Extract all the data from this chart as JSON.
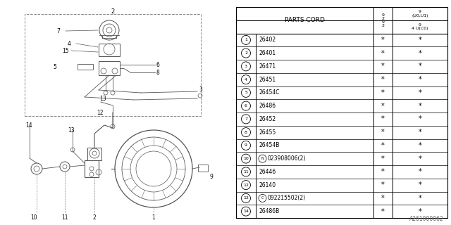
{
  "background_color": "#ffffff",
  "parts": [
    {
      "num": "1",
      "code": "26402",
      "prefix": ""
    },
    {
      "num": "2",
      "code": "26401",
      "prefix": ""
    },
    {
      "num": "3",
      "code": "26471",
      "prefix": ""
    },
    {
      "num": "4",
      "code": "26451",
      "prefix": ""
    },
    {
      "num": "5",
      "code": "26454C",
      "prefix": ""
    },
    {
      "num": "6",
      "code": "26486",
      "prefix": ""
    },
    {
      "num": "7",
      "code": "26452",
      "prefix": ""
    },
    {
      "num": "8",
      "code": "26455",
      "prefix": ""
    },
    {
      "num": "9",
      "code": "26454B",
      "prefix": ""
    },
    {
      "num": "10",
      "code": "023908006(2)",
      "prefix": "N"
    },
    {
      "num": "11",
      "code": "26446",
      "prefix": ""
    },
    {
      "num": "12",
      "code": "26140",
      "prefix": ""
    },
    {
      "num": "13",
      "code": "092215502(2)",
      "prefix": "C"
    },
    {
      "num": "14",
      "code": "26486B",
      "prefix": ""
    }
  ],
  "id_label": "A261000062"
}
